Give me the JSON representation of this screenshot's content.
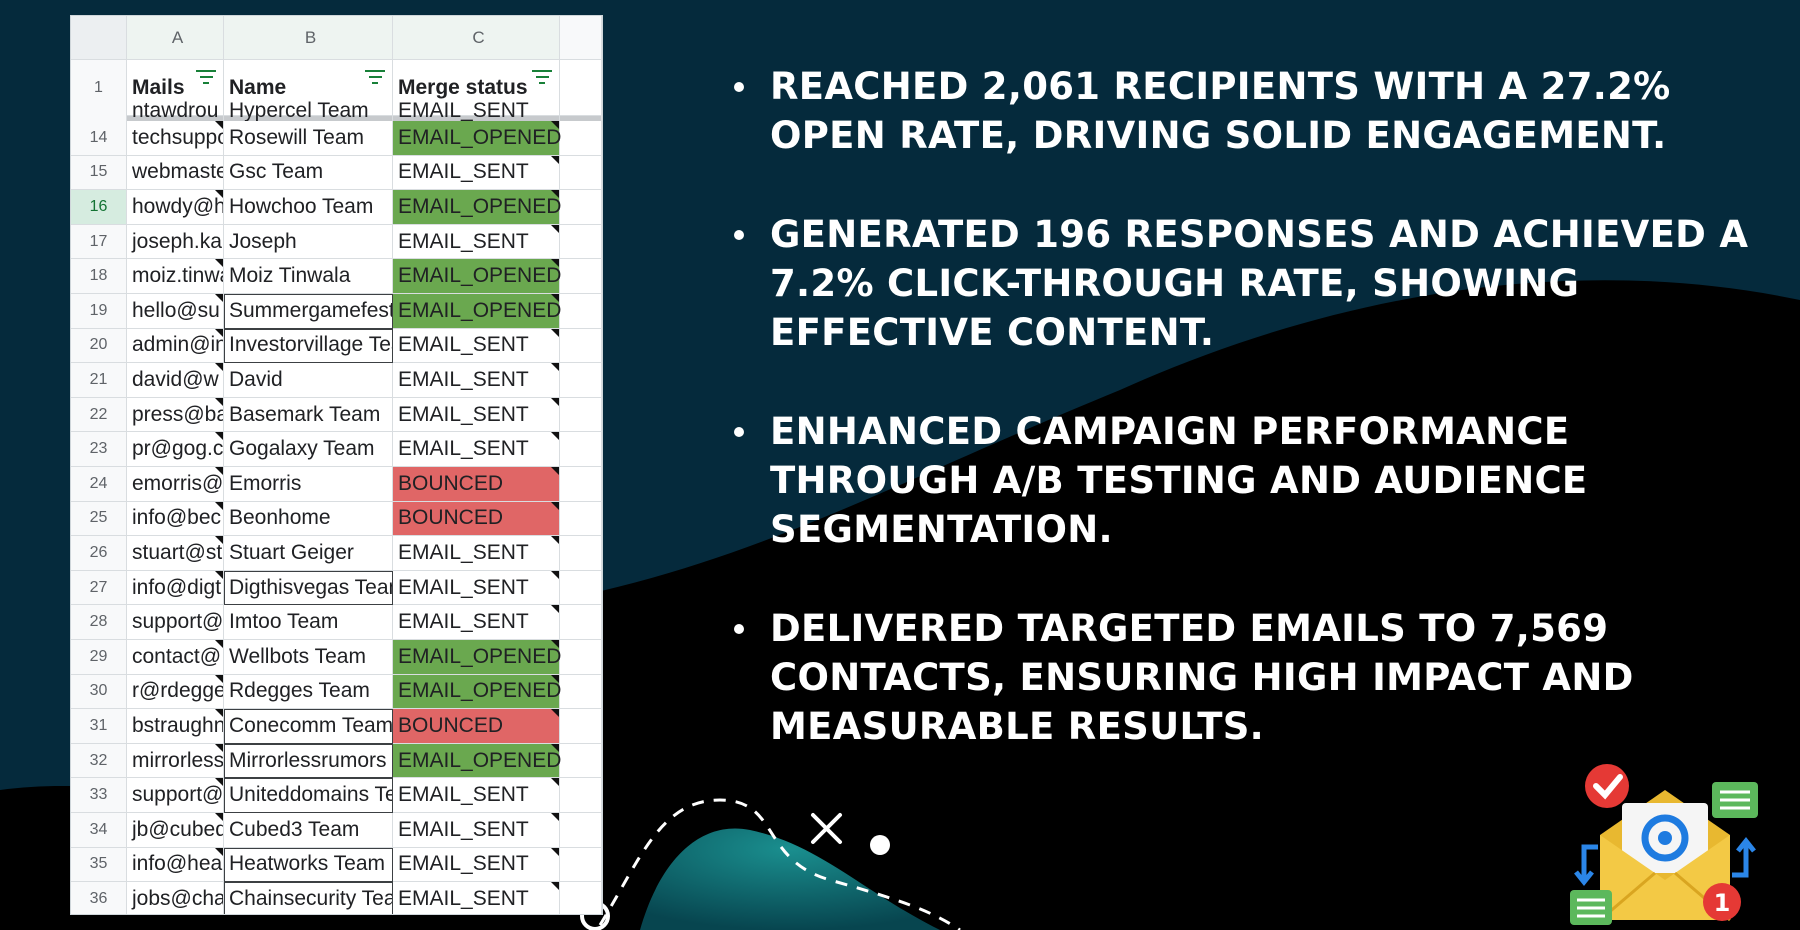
{
  "sheet": {
    "col_headers": [
      "A",
      "B",
      "C"
    ],
    "header_row": {
      "num": "1",
      "a": "Mails",
      "b": "Name",
      "c": "Merge status"
    },
    "partial_row": {
      "a": "ntawdrou",
      "b": "Hypercel Team",
      "c": "EMAIL_SENT"
    },
    "rows": [
      {
        "num": "14",
        "a": "techsupport",
        "b": "Rosewill Team",
        "c": "EMAIL_OPENED",
        "status": "opened"
      },
      {
        "num": "15",
        "a": "webmaster",
        "b": "Gsc Team",
        "c": "EMAIL_SENT",
        "status": "sent"
      },
      {
        "num": "16",
        "a": "howdy@h",
        "b": "Howchoo Team",
        "c": "EMAIL_OPENED",
        "status": "opened"
      },
      {
        "num": "17",
        "a": "joseph.ka",
        "b": "Joseph",
        "c": "EMAIL_SENT",
        "status": "sent"
      },
      {
        "num": "18",
        "a": "moiz.tinwala",
        "b": "Moiz Tinwala",
        "c": "EMAIL_OPENED",
        "status": "opened"
      },
      {
        "num": "19",
        "a": "hello@su",
        "b": "Summergamefest",
        "c": "EMAIL_OPENED",
        "status": "opened"
      },
      {
        "num": "20",
        "a": "admin@in",
        "b": "Investorvillage Team",
        "c": "EMAIL_SENT",
        "status": "sent"
      },
      {
        "num": "21",
        "a": "david@w",
        "b": "David",
        "c": "EMAIL_SENT",
        "status": "sent"
      },
      {
        "num": "22",
        "a": "press@ba",
        "b": "Basemark Team",
        "c": "EMAIL_SENT",
        "status": "sent"
      },
      {
        "num": "23",
        "a": "pr@gog.c",
        "b": "Gogalaxy Team",
        "c": "EMAIL_SENT",
        "status": "sent"
      },
      {
        "num": "24",
        "a": "emorris@",
        "b": "Emorris",
        "c": "BOUNCED",
        "status": "bounced"
      },
      {
        "num": "25",
        "a": "info@bec",
        "b": "Beonhome",
        "c": "BOUNCED",
        "status": "bounced"
      },
      {
        "num": "26",
        "a": "stuart@st",
        "b": "Stuart Geiger",
        "c": "EMAIL_SENT",
        "status": "sent"
      },
      {
        "num": "27",
        "a": "info@digt",
        "b": "Digthisvegas Team",
        "c": "EMAIL_SENT",
        "status": "sent"
      },
      {
        "num": "28",
        "a": "support@",
        "b": "Imtoo Team",
        "c": "EMAIL_SENT",
        "status": "sent"
      },
      {
        "num": "29",
        "a": "contact@",
        "b": "Wellbots Team",
        "c": "EMAIL_OPENED",
        "status": "opened"
      },
      {
        "num": "30",
        "a": "r@rdegge",
        "b": "Rdegges Team",
        "c": "EMAIL_OPENED",
        "status": "opened"
      },
      {
        "num": "31",
        "a": "bstraughn",
        "b": "Conecomm Team",
        "c": "BOUNCED",
        "status": "bounced"
      },
      {
        "num": "32",
        "a": "mirrorless",
        "b": "Mirrorlessrumors",
        "c": "EMAIL_OPENED",
        "status": "opened"
      },
      {
        "num": "33",
        "a": "support@",
        "b": "Uniteddomains Team",
        "c": "EMAIL_SENT",
        "status": "sent"
      },
      {
        "num": "34",
        "a": "jb@cubed",
        "b": "Cubed3 Team",
        "c": "EMAIL_SENT",
        "status": "sent"
      },
      {
        "num": "35",
        "a": "info@hea",
        "b": "Heatworks Team",
        "c": "EMAIL_SENT",
        "status": "sent"
      },
      {
        "num": "36",
        "a": "jobs@cha",
        "b": "Chainsecurity Team",
        "c": "EMAIL_SENT",
        "status": "sent"
      }
    ],
    "colors": {
      "opened": "#6aa84f",
      "bounced": "#e06666",
      "header_green": "#188038"
    }
  },
  "bullets": [
    "REACHED 2,061 RECIPIENTS WITH A 27.2% OPEN RATE, DRIVING SOLID ENGAGEMENT.",
    "GENERATED 196 RESPONSES AND ACHIEVED A 7.2% CLICK-THROUGH RATE, SHOWING EFFECTIVE CONTENT.",
    "ENHANCED CAMPAIGN PERFORMANCE THROUGH A/B TESTING AND AUDIENCE SEGMENTATION.",
    "DELIVERED TARGETED EMAILS TO 7,569 CONTACTS, ENSURING HIGH IMPACT AND MEASURABLE RESULTS."
  ],
  "illustration": {
    "badge_count": "1",
    "icons": [
      "envelope-icon",
      "at-sign-icon",
      "checkmark-icon",
      "spreadsheet-icon",
      "arrow-icon"
    ]
  },
  "theme": {
    "background": "#052a3c",
    "wave": "#000000",
    "teal_blob": "#0d6b73"
  }
}
